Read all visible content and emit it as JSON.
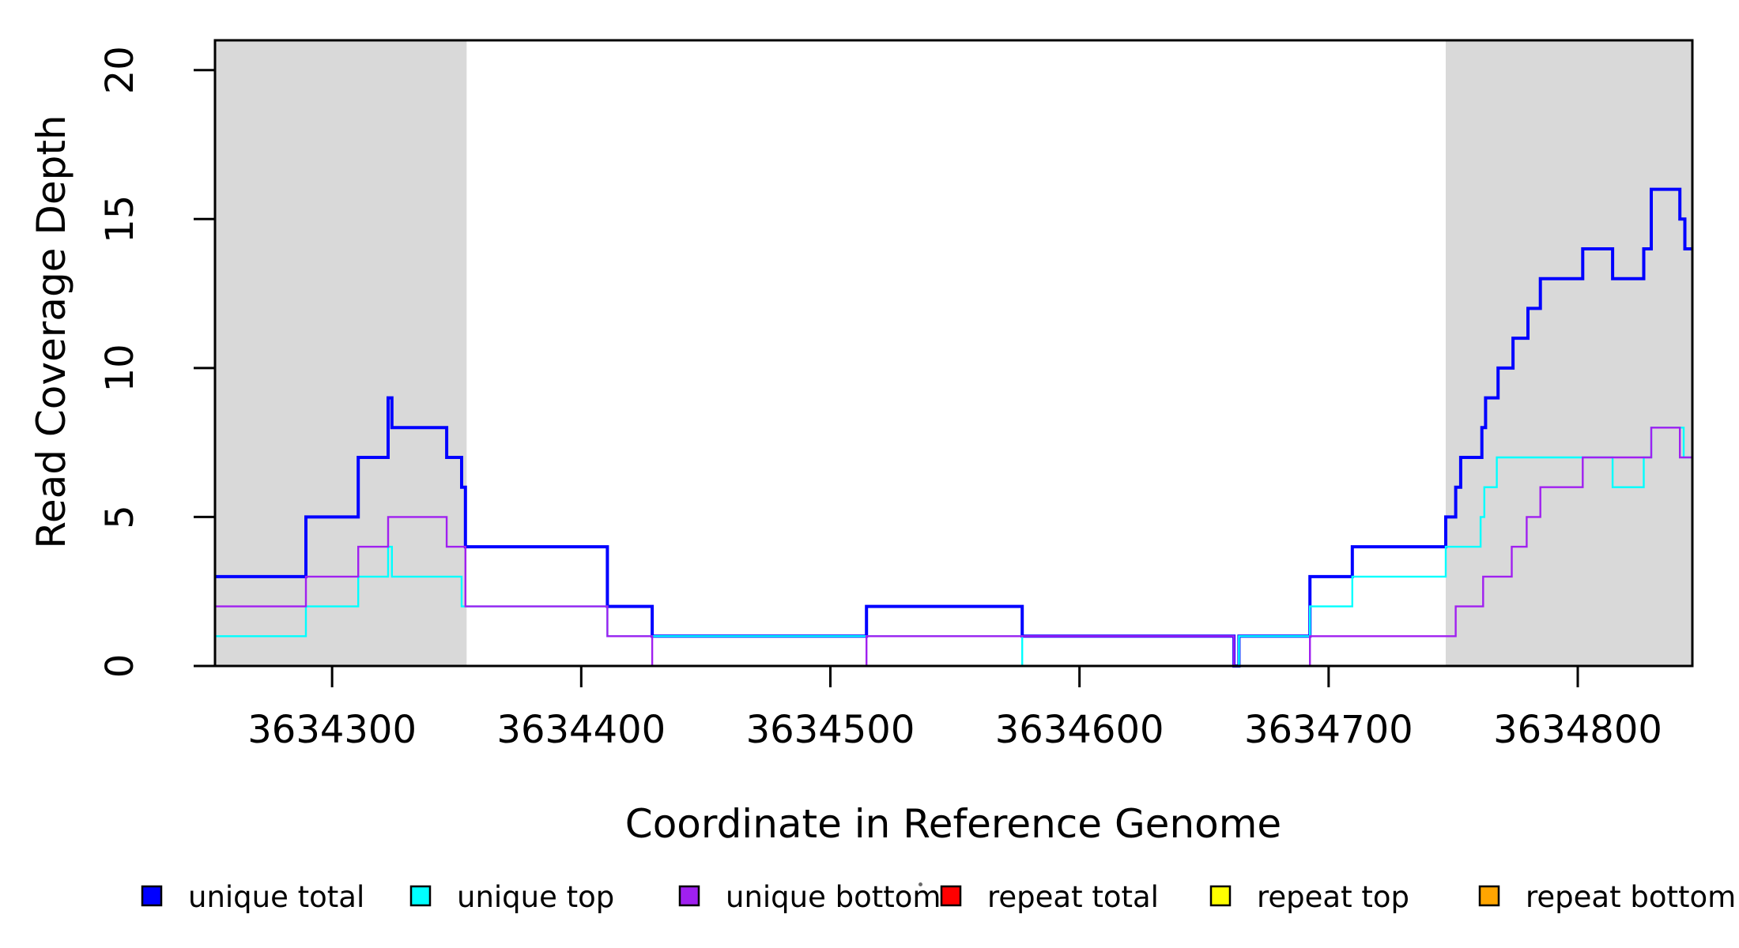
{
  "chart_data": {
    "type": "line",
    "step": true,
    "title": "",
    "xlabel": "Coordinate in Reference Genome",
    "ylabel": "Read Coverage Depth",
    "xlim": [
      3634253,
      3634846
    ],
    "ylim": [
      0,
      21
    ],
    "x_ticks": [
      3634300,
      3634400,
      3634500,
      3634600,
      3634700,
      3634800
    ],
    "y_ticks": [
      0,
      5,
      10,
      15,
      20
    ],
    "grid": false,
    "legend_position": "bottom",
    "shade_color": "#d9d9d9",
    "background_color": "#ffffff",
    "axis_color": "#000000",
    "shaded_regions": [
      {
        "from": 3634253,
        "to": 3634354
      },
      {
        "from": 3634747,
        "to": 3634846
      }
    ],
    "x_end": 3634846,
    "series": [
      {
        "name": "unique total",
        "color": "#0000ff",
        "width": 4,
        "points": [
          [
            3634253,
            3
          ],
          [
            3634289.5,
            5
          ],
          [
            3634310.5,
            7
          ],
          [
            3634322.5,
            9
          ],
          [
            3634324,
            8
          ],
          [
            3634346,
            7
          ],
          [
            3634352,
            6
          ],
          [
            3634353.5,
            4
          ],
          [
            3634410.5,
            2
          ],
          [
            3634428.5,
            1
          ],
          [
            3634514.5,
            2
          ],
          [
            3634577,
            1
          ],
          [
            3634662,
            0
          ],
          [
            3634664,
            1
          ],
          [
            3634692.5,
            3
          ],
          [
            3634709.5,
            4
          ],
          [
            3634747,
            5
          ],
          [
            3634751,
            6
          ],
          [
            3634753,
            7
          ],
          [
            3634761.5,
            8
          ],
          [
            3634763,
            9
          ],
          [
            3634768,
            10
          ],
          [
            3634774,
            11
          ],
          [
            3634780,
            12
          ],
          [
            3634785,
            13
          ],
          [
            3634802,
            14
          ],
          [
            3634814,
            13
          ],
          [
            3634826.5,
            14
          ],
          [
            3634829.5,
            16
          ],
          [
            3634841,
            15
          ],
          [
            3634843,
            14
          ]
        ]
      },
      {
        "name": "unique top",
        "color": "#00ffff",
        "width": 2.4,
        "points": [
          [
            3634253,
            1
          ],
          [
            3634289.5,
            2
          ],
          [
            3634310.5,
            3
          ],
          [
            3634322.5,
            4
          ],
          [
            3634324,
            3
          ],
          [
            3634352,
            2
          ],
          [
            3634410.5,
            1
          ],
          [
            3634577,
            0
          ],
          [
            3634664,
            1
          ],
          [
            3634692.5,
            2
          ],
          [
            3634709.5,
            3
          ],
          [
            3634747,
            4
          ],
          [
            3634761,
            5
          ],
          [
            3634762.5,
            6
          ],
          [
            3634767.5,
            7
          ],
          [
            3634814,
            6
          ],
          [
            3634826.5,
            7
          ],
          [
            3634829.5,
            8
          ],
          [
            3634842.5,
            7
          ]
        ]
      },
      {
        "name": "unique bottom",
        "color": "#a020f0",
        "width": 2.4,
        "points": [
          [
            3634253,
            2
          ],
          [
            3634289.5,
            3
          ],
          [
            3634310.5,
            4
          ],
          [
            3634322.5,
            5
          ],
          [
            3634346,
            4
          ],
          [
            3634353.5,
            2
          ],
          [
            3634410.5,
            1
          ],
          [
            3634428.5,
            0
          ],
          [
            3634514.5,
            1
          ],
          [
            3634662,
            0
          ],
          [
            3634692.5,
            1
          ],
          [
            3634751,
            2
          ],
          [
            3634762,
            3
          ],
          [
            3634773.5,
            4
          ],
          [
            3634779.5,
            5
          ],
          [
            3634785,
            6
          ],
          [
            3634802,
            7
          ],
          [
            3634829.5,
            8
          ],
          [
            3634841,
            7
          ]
        ]
      },
      {
        "name": "repeat total",
        "color": "#ff0000",
        "width": 2.4,
        "points": [
          [
            3634253,
            0
          ]
        ]
      },
      {
        "name": "repeat top",
        "color": "#ffff00",
        "width": 2.4,
        "points": [
          [
            3634253,
            0
          ]
        ]
      },
      {
        "name": "repeat bottom",
        "color": "#ffa500",
        "width": 2.8,
        "points": [
          [
            3634253,
            0
          ]
        ]
      }
    ]
  },
  "legend": {
    "items": [
      {
        "label": "unique total",
        "color": "#0000ff"
      },
      {
        "label": "unique top",
        "color": "#00ffff"
      },
      {
        "label": "unique bottom",
        "color": "#a020f0"
      },
      {
        "label": "repeat total",
        "color": "#ff0000"
      },
      {
        "label": "repeat top",
        "color": "#ffff00"
      },
      {
        "label": "repeat bottom",
        "color": "#ffa500"
      }
    ]
  }
}
